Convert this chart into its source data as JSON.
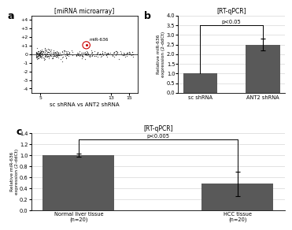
{
  "panel_a": {
    "title": "[miRNA microarray]",
    "xlabel": "sc shRNA vs ANT2 shRNA",
    "xlim": [
      4,
      16
    ],
    "ylim": [
      -4.5,
      4.5
    ],
    "ytick_vals": [
      -4,
      -3,
      -2,
      -1,
      0,
      1,
      2,
      3,
      4
    ],
    "ytick_labels": [
      "-4",
      "-3",
      "-2",
      "-1",
      "0",
      "+1",
      "+2",
      "+3",
      "+4"
    ],
    "xticks": [
      5,
      13,
      15
    ],
    "xtick_labels": [
      "5",
      "13",
      "15"
    ],
    "highlight_x": 10.2,
    "highlight_y": 1.05,
    "highlight_label": "miR-636",
    "dot_color": "#111111",
    "highlight_color": "#cc0000",
    "background": "#ffffff",
    "panel_label": "a"
  },
  "panel_b": {
    "title": "[RT-qPCR]",
    "categories": [
      "sc shRNA",
      "ANT2 shRNA"
    ],
    "values": [
      1.0,
      2.5
    ],
    "errors": [
      0.0,
      0.3
    ],
    "bar_color": "#595959",
    "ylim": [
      0,
      4
    ],
    "yticks": [
      0,
      0.5,
      1.0,
      1.5,
      2.0,
      2.5,
      3.0,
      3.5,
      4.0
    ],
    "ylabel": "Relative miR-636\nexpression (2-ddCt)",
    "pvalue": "p<0.05",
    "background": "#ffffff",
    "panel_label": "b"
  },
  "panel_c": {
    "title": "[RT-qPCR]",
    "categories": [
      "Normal liver tissue\n(n=20)",
      "HCC tissue\n(n=20)"
    ],
    "values": [
      1.0,
      0.48
    ],
    "errors": [
      0.03,
      0.22
    ],
    "bar_color": "#595959",
    "ylim": [
      0,
      1.4
    ],
    "yticks": [
      0,
      0.2,
      0.4,
      0.6,
      0.8,
      1.0,
      1.2,
      1.4
    ],
    "ylabel": "Relative miR-636\nexpression (2-ddCt)",
    "pvalue": "p<0.005",
    "background": "#ffffff",
    "panel_label": "c"
  }
}
